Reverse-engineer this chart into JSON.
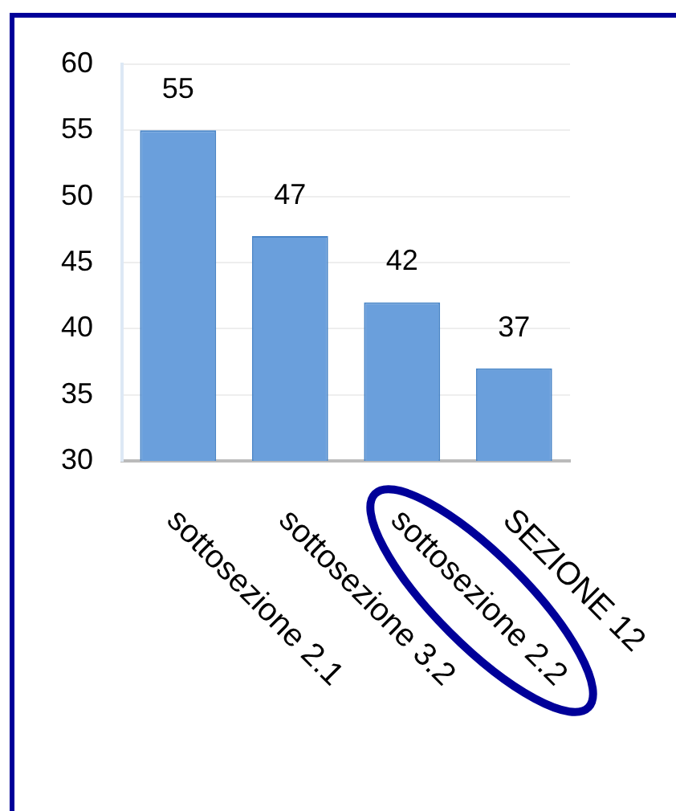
{
  "chart_data": {
    "type": "bar",
    "categories": [
      "sottosezione 2.1",
      "sottosezione 3.2",
      "sottosezione 2.2",
      "SEZIONE 12"
    ],
    "values": [
      55,
      47,
      42,
      37
    ],
    "color": "#6a9fdc",
    "ylim": [
      30,
      60
    ],
    "yticks": [
      30,
      35,
      40,
      45,
      50,
      55,
      60
    ],
    "grid": "y",
    "data_labels": true,
    "legend": false
  }
}
